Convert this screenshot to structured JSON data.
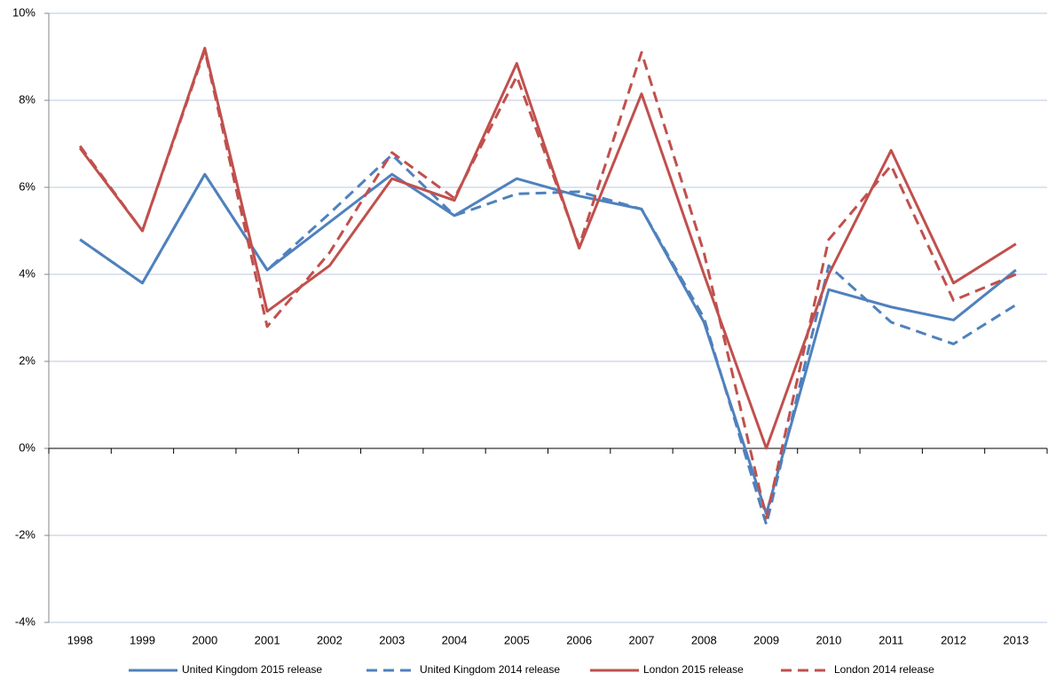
{
  "chart_data": {
    "type": "line",
    "categories": [
      "1998",
      "1999",
      "2000",
      "2001",
      "2002",
      "2003",
      "2004",
      "2005",
      "2006",
      "2007",
      "2008",
      "2009",
      "2010",
      "2011",
      "2012",
      "2013"
    ],
    "series": [
      {
        "name": "United Kingdom 2015 release",
        "color": "#4f81bd",
        "line_style": "solid",
        "values": [
          4.8,
          3.8,
          6.3,
          4.1,
          5.2,
          6.3,
          5.35,
          6.2,
          5.8,
          5.5,
          2.9,
          -1.5,
          3.65,
          3.25,
          2.95,
          4.1
        ]
      },
      {
        "name": "United Kingdom 2014 release",
        "color": "#4f81bd",
        "line_style": "dashed",
        "values": [
          4.8,
          3.8,
          6.3,
          4.1,
          5.4,
          6.75,
          5.35,
          5.85,
          5.9,
          5.5,
          3.0,
          -1.75,
          4.2,
          2.9,
          2.4,
          3.3
        ]
      },
      {
        "name": "London 2015 release",
        "color": "#c0504d",
        "line_style": "solid",
        "values": [
          6.9,
          5.0,
          9.2,
          3.15,
          4.2,
          6.2,
          5.7,
          8.85,
          4.6,
          8.15,
          4.0,
          0.0,
          4.0,
          6.85,
          3.8,
          4.7
        ]
      },
      {
        "name": "London 2014 release",
        "color": "#c0504d",
        "line_style": "dashed",
        "values": [
          6.95,
          5.0,
          9.15,
          2.8,
          4.5,
          6.8,
          5.75,
          8.55,
          4.65,
          9.1,
          4.5,
          -1.6,
          4.8,
          6.5,
          3.4,
          4.0
        ]
      }
    ],
    "ylim": [
      -4,
      10
    ],
    "yticks": [
      {
        "value": -4,
        "label": "-4%"
      },
      {
        "value": -2,
        "label": "-2%"
      },
      {
        "value": 0,
        "label": "0%"
      },
      {
        "value": 2,
        "label": "2%"
      },
      {
        "value": 4,
        "label": "4%"
      },
      {
        "value": 6,
        "label": "6%"
      },
      {
        "value": 8,
        "label": "8%"
      },
      {
        "value": 10,
        "label": "10%"
      }
    ],
    "grid": true,
    "legend": "bottom"
  }
}
